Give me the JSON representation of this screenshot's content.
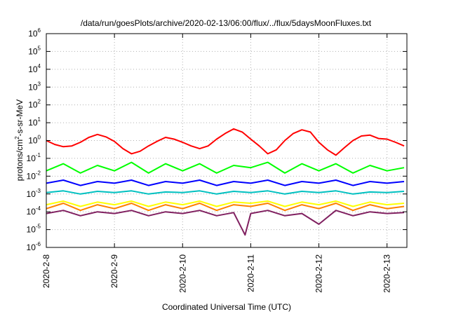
{
  "chart_data": {
    "type": "line",
    "title": "/data/run/goesPlots/archive/2020-02-13/06:00/flux/../flux/5daysMoonFluxes.txt",
    "xlabel": "Coordinated Universal Time (UTC)",
    "ylabel": "protons/cm2-s-sr-MeV",
    "ylabel_parts": {
      "before": "protons/cm",
      "sup": "2",
      "after": "-s-sr-MeV"
    },
    "y_scale": "log",
    "ylim": [
      1e-06,
      1000000.0
    ],
    "xlim": [
      "2020-02-08T00:00",
      "2020-02-13T07:00"
    ],
    "grid": true,
    "legend": "none",
    "x_ticks": [
      {
        "label": "2020-2-8",
        "date": "2020-02-08T00:00"
      },
      {
        "label": "2020-2-9",
        "date": "2020-02-09T00:00"
      },
      {
        "label": "2020-2-10",
        "date": "2020-02-10T00:00"
      },
      {
        "label": "2020-2-11",
        "date": "2020-02-11T00:00"
      },
      {
        "label": "2020-2-12",
        "date": "2020-02-12T00:00"
      },
      {
        "label": "2020-2-13",
        "date": "2020-02-13T00:00"
      }
    ],
    "y_ticks": [
      {
        "base": "10",
        "exp": "-6",
        "value": 1e-06
      },
      {
        "base": "10",
        "exp": "-5",
        "value": 1e-05
      },
      {
        "base": "10",
        "exp": "-4",
        "value": 0.0001
      },
      {
        "base": "10",
        "exp": "-3",
        "value": 0.001
      },
      {
        "base": "10",
        "exp": "-2",
        "value": 0.01
      },
      {
        "base": "10",
        "exp": "-1",
        "value": 0.1
      },
      {
        "base": "10",
        "exp": "0",
        "value": 1
      },
      {
        "base": "10",
        "exp": "1",
        "value": 10
      },
      {
        "base": "10",
        "exp": "2",
        "value": 100
      },
      {
        "base": "10",
        "exp": "3",
        "value": 1000
      },
      {
        "base": "10",
        "exp": "4",
        "value": 10000
      },
      {
        "base": "10",
        "exp": "5",
        "value": 100000
      },
      {
        "base": "10",
        "exp": "6",
        "value": 1000000
      }
    ],
    "series": [
      {
        "color": "#ff0000",
        "width": 2,
        "x": [
          "2020-02-08T00:00",
          "2020-02-08T03:00",
          "2020-02-08T06:00",
          "2020-02-08T09:00",
          "2020-02-08T12:00",
          "2020-02-08T15:00",
          "2020-02-08T18:00",
          "2020-02-08T21:00",
          "2020-02-09T00:00",
          "2020-02-09T03:00",
          "2020-02-09T06:00",
          "2020-02-09T09:00",
          "2020-02-09T12:00",
          "2020-02-09T15:00",
          "2020-02-09T18:00",
          "2020-02-09T21:00",
          "2020-02-10T00:00",
          "2020-02-10T03:00",
          "2020-02-10T06:00",
          "2020-02-10T09:00",
          "2020-02-10T12:00",
          "2020-02-10T15:00",
          "2020-02-10T18:00",
          "2020-02-10T21:00",
          "2020-02-11T00:00",
          "2020-02-11T03:00",
          "2020-02-11T06:00",
          "2020-02-11T09:00",
          "2020-02-11T12:00",
          "2020-02-11T15:00",
          "2020-02-11T18:00",
          "2020-02-11T21:00",
          "2020-02-12T00:00",
          "2020-02-12T03:00",
          "2020-02-12T06:00",
          "2020-02-12T09:00",
          "2020-02-12T12:00",
          "2020-02-12T15:00",
          "2020-02-12T18:00",
          "2020-02-12T21:00",
          "2020-02-13T00:00",
          "2020-02-13T03:00",
          "2020-02-13T06:00"
        ],
        "y": [
          1.0,
          0.6,
          0.45,
          0.5,
          0.8,
          1.5,
          2.2,
          1.6,
          0.9,
          0.35,
          0.18,
          0.25,
          0.5,
          0.9,
          1.5,
          1.2,
          0.8,
          0.5,
          0.35,
          0.5,
          1.2,
          2.5,
          4.5,
          3.0,
          1.2,
          0.5,
          0.18,
          0.3,
          1.0,
          2.5,
          4.0,
          3.0,
          0.8,
          0.3,
          0.15,
          0.4,
          1.0,
          1.8,
          2.0,
          1.3,
          1.2,
          0.8,
          0.5
        ]
      },
      {
        "color": "#00ff00",
        "width": 2,
        "x": [
          "2020-02-08T00:00",
          "2020-02-08T06:00",
          "2020-02-08T12:00",
          "2020-02-08T18:00",
          "2020-02-09T00:00",
          "2020-02-09T06:00",
          "2020-02-09T12:00",
          "2020-02-09T18:00",
          "2020-02-10T00:00",
          "2020-02-10T06:00",
          "2020-02-10T12:00",
          "2020-02-10T18:00",
          "2020-02-11T00:00",
          "2020-02-11T06:00",
          "2020-02-11T12:00",
          "2020-02-11T18:00",
          "2020-02-12T00:00",
          "2020-02-12T06:00",
          "2020-02-12T12:00",
          "2020-02-12T18:00",
          "2020-02-13T00:00",
          "2020-02-13T06:00"
        ],
        "y": [
          0.02,
          0.05,
          0.015,
          0.04,
          0.02,
          0.06,
          0.015,
          0.05,
          0.02,
          0.05,
          0.015,
          0.04,
          0.03,
          0.06,
          0.015,
          0.05,
          0.02,
          0.05,
          0.015,
          0.04,
          0.02,
          0.03
        ]
      },
      {
        "color": "#0000ff",
        "width": 2,
        "x": [
          "2020-02-08T00:00",
          "2020-02-08T06:00",
          "2020-02-08T12:00",
          "2020-02-08T18:00",
          "2020-02-09T00:00",
          "2020-02-09T06:00",
          "2020-02-09T12:00",
          "2020-02-09T18:00",
          "2020-02-10T00:00",
          "2020-02-10T06:00",
          "2020-02-10T12:00",
          "2020-02-10T18:00",
          "2020-02-11T00:00",
          "2020-02-11T06:00",
          "2020-02-11T12:00",
          "2020-02-11T18:00",
          "2020-02-12T00:00",
          "2020-02-12T06:00",
          "2020-02-12T12:00",
          "2020-02-12T18:00",
          "2020-02-13T00:00",
          "2020-02-13T06:00"
        ],
        "y": [
          0.004,
          0.006,
          0.003,
          0.005,
          0.004,
          0.006,
          0.003,
          0.005,
          0.004,
          0.006,
          0.003,
          0.005,
          0.004,
          0.006,
          0.003,
          0.005,
          0.004,
          0.006,
          0.003,
          0.005,
          0.004,
          0.005
        ]
      },
      {
        "color": "#00c0c0",
        "width": 2,
        "x": [
          "2020-02-08T00:00",
          "2020-02-08T06:00",
          "2020-02-08T12:00",
          "2020-02-08T18:00",
          "2020-02-09T00:00",
          "2020-02-09T06:00",
          "2020-02-09T12:00",
          "2020-02-09T18:00",
          "2020-02-10T00:00",
          "2020-02-10T06:00",
          "2020-02-10T12:00",
          "2020-02-10T18:00",
          "2020-02-11T00:00",
          "2020-02-11T06:00",
          "2020-02-11T12:00",
          "2020-02-11T18:00",
          "2020-02-12T00:00",
          "2020-02-12T06:00",
          "2020-02-12T12:00",
          "2020-02-12T18:00",
          "2020-02-13T00:00",
          "2020-02-13T06:00"
        ],
        "y": [
          0.0012,
          0.0015,
          0.001,
          0.0014,
          0.0012,
          0.0015,
          0.001,
          0.0013,
          0.0012,
          0.0015,
          0.001,
          0.0014,
          0.0012,
          0.0015,
          0.001,
          0.0014,
          0.0012,
          0.0015,
          0.001,
          0.0013,
          0.0012,
          0.0014
        ]
      },
      {
        "color": "#ffff00",
        "width": 2,
        "x": [
          "2020-02-08T00:00",
          "2020-02-08T06:00",
          "2020-02-08T12:00",
          "2020-02-08T18:00",
          "2020-02-09T00:00",
          "2020-02-09T06:00",
          "2020-02-09T12:00",
          "2020-02-09T18:00",
          "2020-02-10T00:00",
          "2020-02-10T06:00",
          "2020-02-10T12:00",
          "2020-02-10T18:00",
          "2020-02-11T00:00",
          "2020-02-11T06:00",
          "2020-02-11T12:00",
          "2020-02-11T18:00",
          "2020-02-12T00:00",
          "2020-02-12T06:00",
          "2020-02-12T12:00",
          "2020-02-12T18:00",
          "2020-02-13T00:00",
          "2020-02-13T06:00"
        ],
        "y": [
          0.00025,
          0.0004,
          0.0002,
          0.00035,
          0.00025,
          0.0004,
          0.0002,
          0.00035,
          0.00025,
          0.0004,
          0.0002,
          0.00035,
          0.0003,
          0.0004,
          0.0002,
          0.00035,
          0.00025,
          0.0004,
          0.0002,
          0.00035,
          0.00025,
          0.0003
        ]
      },
      {
        "color": "#ff8000",
        "width": 2,
        "x": [
          "2020-02-08T00:00",
          "2020-02-08T06:00",
          "2020-02-08T12:00",
          "2020-02-08T18:00",
          "2020-02-09T00:00",
          "2020-02-09T06:00",
          "2020-02-09T12:00",
          "2020-02-09T18:00",
          "2020-02-10T00:00",
          "2020-02-10T06:00",
          "2020-02-10T12:00",
          "2020-02-10T18:00",
          "2020-02-11T00:00",
          "2020-02-11T06:00",
          "2020-02-11T12:00",
          "2020-02-11T18:00",
          "2020-02-12T00:00",
          "2020-02-12T06:00",
          "2020-02-12T12:00",
          "2020-02-12T18:00",
          "2020-02-13T00:00",
          "2020-02-13T06:00"
        ],
        "y": [
          0.00015,
          0.0003,
          0.00012,
          0.00025,
          0.00015,
          0.0003,
          0.00012,
          0.00025,
          0.00015,
          0.0003,
          0.00012,
          0.00025,
          0.0002,
          0.0003,
          0.00012,
          0.00025,
          0.00015,
          0.0003,
          0.00012,
          0.00025,
          0.00015,
          0.0002
        ]
      },
      {
        "color": "#802060",
        "width": 2,
        "x": [
          "2020-02-08T00:00",
          "2020-02-08T06:00",
          "2020-02-08T12:00",
          "2020-02-08T18:00",
          "2020-02-09T00:00",
          "2020-02-09T06:00",
          "2020-02-09T12:00",
          "2020-02-09T18:00",
          "2020-02-10T00:00",
          "2020-02-10T06:00",
          "2020-02-10T12:00",
          "2020-02-10T18:00",
          "2020-02-10T22:00",
          "2020-02-11T00:00",
          "2020-02-11T06:00",
          "2020-02-11T12:00",
          "2020-02-11T18:00",
          "2020-02-12T00:00",
          "2020-02-12T06:00",
          "2020-02-12T12:00",
          "2020-02-12T18:00",
          "2020-02-13T00:00",
          "2020-02-13T06:00"
        ],
        "y": [
          8e-05,
          0.00012,
          6e-05,
          0.0001,
          8e-05,
          0.00012,
          6e-05,
          0.0001,
          8e-05,
          0.00012,
          6e-05,
          9e-05,
          5e-06,
          8e-05,
          0.00012,
          6e-05,
          8e-05,
          2e-05,
          0.00012,
          6e-05,
          0.0001,
          8e-05,
          9e-05
        ]
      }
    ]
  }
}
